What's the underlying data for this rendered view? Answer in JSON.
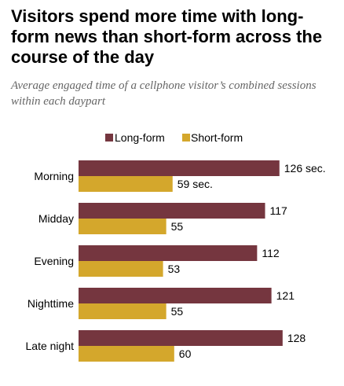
{
  "title": "Visitors spend more time with long-form news than short-form across the course of the day",
  "subtitle": "Average engaged time of a cellphone visitor’s combined sessions within each daypart",
  "colors": {
    "long_form": "#75363f",
    "short_form": "#d4a72c",
    "text": "#000000",
    "subtitle": "#666666"
  },
  "chart_data": {
    "type": "bar",
    "orientation": "horizontal",
    "categories": [
      "Morning",
      "Midday",
      "Evening",
      "Nighttime",
      "Late night"
    ],
    "series": [
      {
        "name": "Long-form",
        "values": [
          126,
          117,
          112,
          121,
          128
        ],
        "labels": [
          "126 sec.",
          "117",
          "112",
          "121",
          "128"
        ]
      },
      {
        "name": "Short-form",
        "values": [
          59,
          55,
          53,
          55,
          60
        ],
        "labels": [
          "59 sec.",
          "55",
          "53",
          "55",
          "60"
        ]
      }
    ],
    "unit": "sec.",
    "legend": "top",
    "grid": false,
    "xlim": [
      0,
      128
    ]
  }
}
